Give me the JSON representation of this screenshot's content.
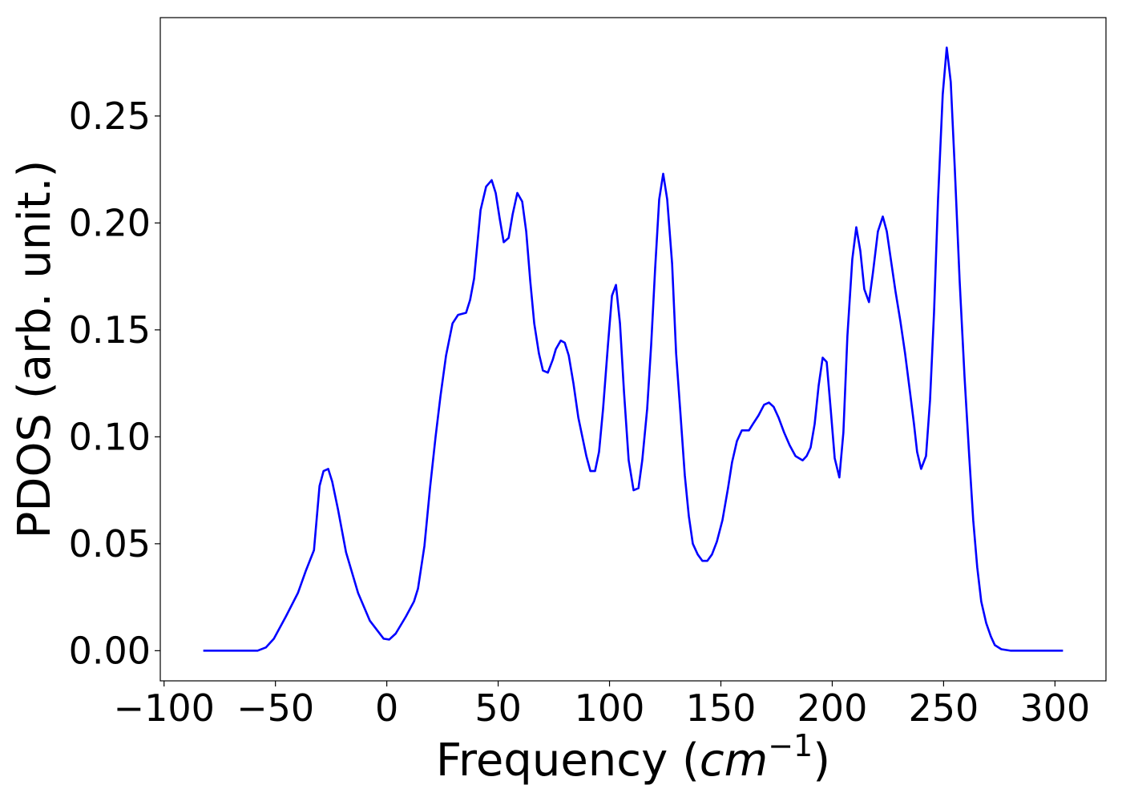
{
  "chart_data": {
    "type": "line",
    "xlabel": {
      "text": "Frequency (",
      "unit": "cm",
      "exponent": "−1",
      "close": ")"
    },
    "ylabel": "PDOS (arb. unit.)",
    "x": [
      -82.4,
      -58,
      -54.3,
      -50.7,
      -45.3,
      -39.9,
      -36.3,
      -32.7,
      -30.2,
      -28.4,
      -26.3,
      -24.5,
      -21.9,
      -18.3,
      -12.9,
      -7.6,
      -1.4,
      1.1,
      4,
      8.6,
      12.2,
      14,
      16.9,
      19.4,
      21.9,
      24.1,
      26.6,
      29.5,
      32,
      35.6,
      37.4,
      39.2,
      42.1,
      44.6,
      47.1,
      48.9,
      50.7,
      52.5,
      54.7,
      56.5,
      58.6,
      60.8,
      62.6,
      64.4,
      66.2,
      68.3,
      70.1,
      72.3,
      74.5,
      75.9,
      78.1,
      79.9,
      81.7,
      83.8,
      86,
      87.8,
      89.6,
      91.4,
      93.5,
      95.3,
      97.1,
      99.3,
      101.1,
      102.9,
      104.7,
      106.5,
      108.6,
      110.8,
      113,
      114.7,
      116.9,
      118.7,
      120.5,
      122.3,
      124.1,
      125.9,
      128.1,
      129.9,
      131.7,
      133.8,
      135.6,
      137.4,
      139.6,
      141.7,
      143.9,
      146,
      148.2,
      150.7,
      153.2,
      155,
      157.2,
      159.4,
      162.6,
      164.4,
      166.9,
      169.4,
      171.6,
      173.7,
      175.9,
      178.4,
      180.9,
      183.5,
      186.7,
      188.5,
      190.3,
      192.1,
      193.9,
      195.7,
      197.5,
      199.3,
      201.1,
      203.2,
      205,
      206.8,
      209,
      210.8,
      212.6,
      214.4,
      216.5,
      218.3,
      220.5,
      222.7,
      224.5,
      226.3,
      228.4,
      230.6,
      232.7,
      234.9,
      236.7,
      238.1,
      239.9,
      242.1,
      243.9,
      245.7,
      247.5,
      249.6,
      251.4,
      253.2,
      255,
      257.2,
      259.4,
      261.5,
      263.3,
      265.1,
      266.9,
      269.1,
      271.2,
      273,
      275.9,
      280.2,
      303.6
    ],
    "series": [
      {
        "name": "PDOS",
        "color": "#0000ff",
        "values": [
          0,
          0,
          0.0015,
          0.0056,
          0.016,
          0.027,
          0.0375,
          0.047,
          0.077,
          0.084,
          0.085,
          0.079,
          0.066,
          0.046,
          0.027,
          0.014,
          0.0056,
          0.0052,
          0.008,
          0.016,
          0.023,
          0.029,
          0.049,
          0.076,
          0.1,
          0.119,
          0.138,
          0.153,
          0.157,
          0.158,
          0.164,
          0.174,
          0.206,
          0.217,
          0.22,
          0.214,
          0.202,
          0.191,
          0.193,
          0.204,
          0.214,
          0.21,
          0.196,
          0.173,
          0.153,
          0.139,
          0.131,
          0.13,
          0.136,
          0.141,
          0.145,
          0.144,
          0.138,
          0.125,
          0.109,
          0.1,
          0.091,
          0.084,
          0.084,
          0.093,
          0.113,
          0.143,
          0.166,
          0.171,
          0.153,
          0.121,
          0.089,
          0.075,
          0.076,
          0.089,
          0.113,
          0.143,
          0.179,
          0.211,
          0.223,
          0.211,
          0.181,
          0.139,
          0.113,
          0.082,
          0.063,
          0.05,
          0.045,
          0.042,
          0.042,
          0.045,
          0.051,
          0.061,
          0.076,
          0.088,
          0.098,
          0.103,
          0.103,
          0.106,
          0.11,
          0.115,
          0.116,
          0.114,
          0.109,
          0.102,
          0.096,
          0.091,
          0.089,
          0.091,
          0.095,
          0.106,
          0.124,
          0.137,
          0.135,
          0.113,
          0.09,
          0.081,
          0.102,
          0.147,
          0.183,
          0.198,
          0.187,
          0.169,
          0.163,
          0.177,
          0.196,
          0.203,
          0.196,
          0.183,
          0.168,
          0.154,
          0.139,
          0.121,
          0.106,
          0.093,
          0.085,
          0.091,
          0.117,
          0.158,
          0.211,
          0.26,
          0.282,
          0.266,
          0.226,
          0.173,
          0.128,
          0.091,
          0.061,
          0.039,
          0.023,
          0.013,
          0.0067,
          0.0026,
          0.0007,
          0,
          0
        ]
      }
    ],
    "xlim": [
      -101.7,
      322.9
    ],
    "ylim": [
      -0.0141,
      0.296
    ],
    "xticks": [
      {
        "value": -100,
        "label": "−100"
      },
      {
        "value": -50,
        "label": "−50"
      },
      0,
      50,
      100,
      150,
      200,
      250,
      300
    ],
    "yticks": [
      {
        "value": 0,
        "label": "0.00"
      },
      {
        "value": 0.05,
        "label": "0.05"
      },
      {
        "value": 0.1,
        "label": "0.10"
      },
      {
        "value": 0.15,
        "label": "0.15"
      },
      {
        "value": 0.2,
        "label": "0.20"
      },
      {
        "value": 0.25,
        "label": "0.25"
      }
    ],
    "grid": false
  }
}
